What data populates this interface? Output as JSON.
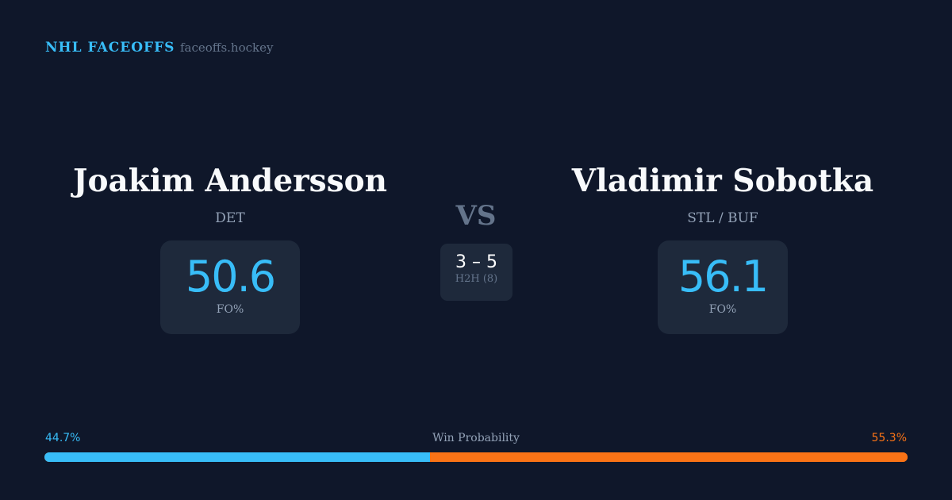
{
  "header": {
    "brand": "NHL FACEOFFS",
    "site": "faceoffs.hockey"
  },
  "player1": {
    "name": "Joakim Andersson",
    "team": "DET",
    "fo_pct": "50.6",
    "fo_label": "FO%"
  },
  "player2": {
    "name": "Vladimir Sobotka",
    "team": "STL / BUF",
    "fo_pct": "56.1",
    "fo_label": "FO%"
  },
  "versus": {
    "label": "VS",
    "score": "3 – 5",
    "h2h_label": "H2H (8)"
  },
  "win_probability": {
    "label": "Win Probability",
    "player1": "44.7%",
    "player2": "55.3%",
    "player1_value": 44.7,
    "colors": {
      "player1": "#38bdf8",
      "player2": "#f97316"
    }
  }
}
